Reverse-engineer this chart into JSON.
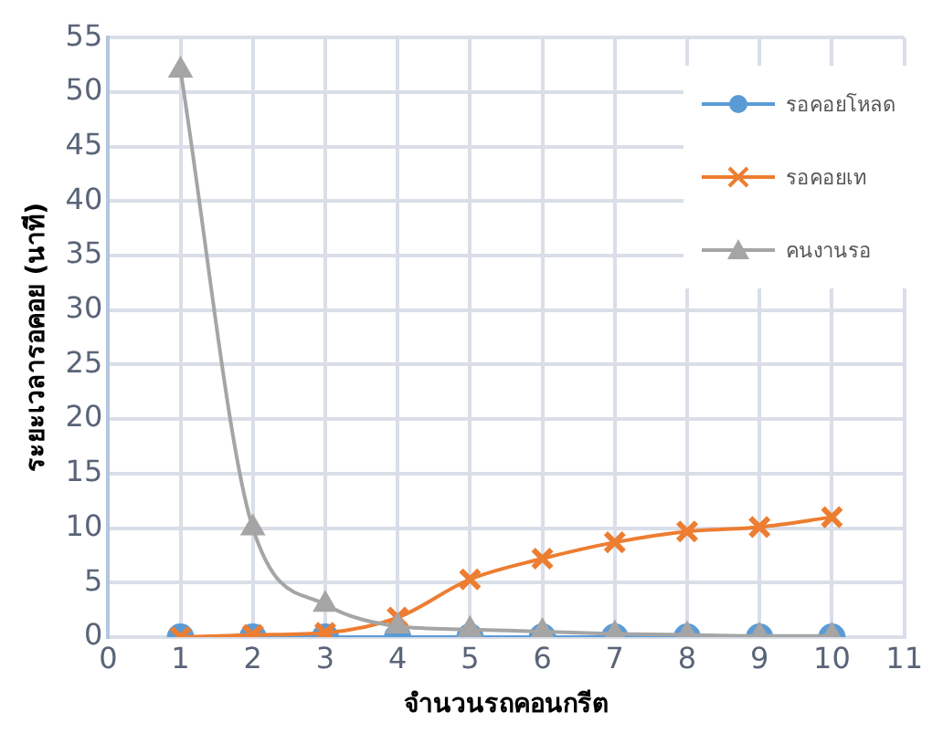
{
  "chart_data": {
    "type": "line",
    "xlabel": "จำนวนรถคอนกรีต",
    "ylabel": "ระยะเวลารอคอย (นาที)",
    "x": [
      1,
      2,
      3,
      4,
      5,
      6,
      7,
      8,
      9,
      10
    ],
    "xlim": [
      0,
      11
    ],
    "xticks": [
      0,
      1,
      2,
      3,
      4,
      5,
      6,
      7,
      8,
      9,
      10,
      11
    ],
    "ylim": [
      0,
      55
    ],
    "yticks": [
      0,
      5,
      10,
      15,
      20,
      25,
      30,
      35,
      40,
      45,
      50,
      55
    ],
    "grid": true,
    "legend": "top right",
    "series": [
      {
        "name": "รอคอยโหลด",
        "color": "#5b9bd5",
        "marker": "circle",
        "values": [
          0,
          0,
          0,
          0,
          0,
          0,
          0,
          0,
          0,
          0
        ]
      },
      {
        "name": "รอคอยเท",
        "color": "#ed7d31",
        "marker": "cross",
        "values": [
          0,
          0.2,
          0.4,
          1.8,
          5.3,
          7.2,
          8.7,
          9.7,
          10.1,
          11
        ]
      },
      {
        "name": "คนงานรอ",
        "color": "#a5a5a5",
        "marker": "triangle",
        "values": [
          52,
          10,
          3,
          1,
          0.7,
          0.5,
          0.3,
          0.2,
          0.1,
          0.1
        ]
      }
    ]
  }
}
